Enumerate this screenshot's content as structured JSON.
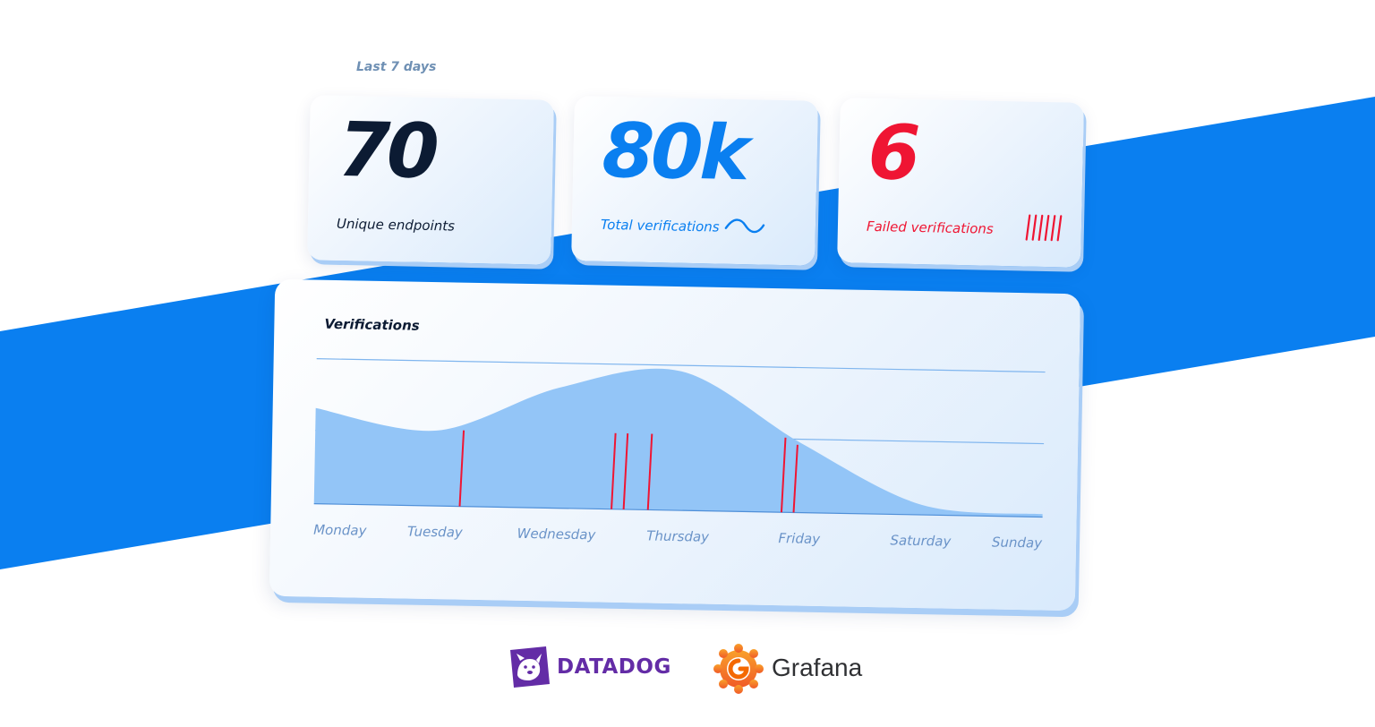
{
  "period_label": "Last 7 days",
  "stats": [
    {
      "value": "70",
      "label": "Unique endpoints"
    },
    {
      "value": "80k",
      "label": "Total verifications"
    },
    {
      "value": "6",
      "label": "Failed verifications"
    }
  ],
  "colors": {
    "brand_blue": "#0a7ff0",
    "dark": "#0c1b33",
    "failure_red": "#ef1533",
    "area_fill": "#93c5f7",
    "day_label": "#6a93c8",
    "datadog_purple": "#632ca6",
    "grafana_orange": "#f46800"
  },
  "icons": {
    "verifications_trend": "wave-icon",
    "failed_marks": "tally-ticks-icon"
  },
  "chart": {
    "title": "Verifications",
    "days": [
      "Monday",
      "Tuesday",
      "Wednesday",
      "Thursday",
      "Friday",
      "Saturday",
      "Sunday"
    ]
  },
  "chart_data": {
    "type": "area",
    "title": "Verifications",
    "x": [
      "Monday",
      "Tuesday",
      "Wednesday",
      "Thursday",
      "Friday",
      "Saturday",
      "Sunday"
    ],
    "values": [
      66,
      52,
      83,
      96,
      48,
      7,
      2
    ],
    "ylim": [
      0,
      100
    ],
    "grid": true,
    "failure_markers": [
      1.2,
      2.45,
      2.55,
      2.75,
      3.85,
      3.95
    ]
  },
  "logos": [
    {
      "name": "DATADOG",
      "icon": "datadog-dog-icon"
    },
    {
      "name": "Grafana",
      "icon": "grafana-swirl-icon"
    }
  ]
}
